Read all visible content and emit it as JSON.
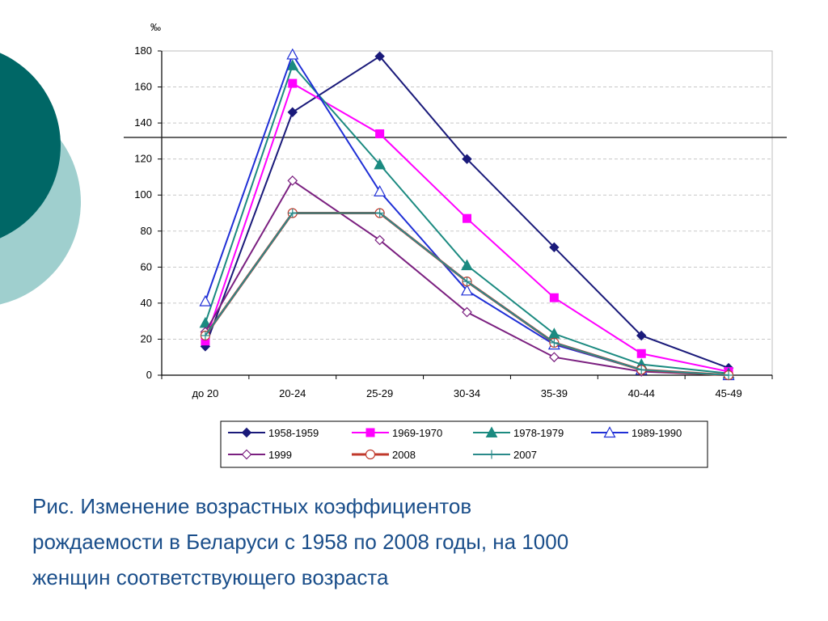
{
  "colors": {
    "deco_dark": "#006766",
    "deco_light": "#9fcfce",
    "caption": "#1a4e8a",
    "grid": "#c8c8c8"
  },
  "chart_data": {
    "type": "line",
    "title": "",
    "xlabel": "",
    "ylabel": "",
    "unit": "‰",
    "categories": [
      "до 20",
      "20-24",
      "25-29",
      "30-34",
      "35-39",
      "40-44",
      "45-49"
    ],
    "ylim": [
      0,
      180
    ],
    "yticks": [
      0,
      20,
      40,
      60,
      80,
      100,
      120,
      140,
      160,
      180
    ],
    "grid": true,
    "reference_line": 132,
    "legend_position": "bottom",
    "series": [
      {
        "name": "1958-1959",
        "color": "#1a1a7a",
        "marker": "diamond-filled",
        "values": [
          16,
          146,
          177,
          120,
          71,
          22,
          4
        ]
      },
      {
        "name": "1969-1970",
        "color": "#ff00ff",
        "marker": "square-filled",
        "values": [
          19,
          162,
          134,
          87,
          43,
          12,
          2
        ]
      },
      {
        "name": "1978-1979",
        "color": "#1b8a80",
        "marker": "triangle-filled",
        "values": [
          29,
          172,
          117,
          61,
          23,
          6,
          1
        ]
      },
      {
        "name": "1989-1990",
        "color": "#1f2fd6",
        "marker": "triangle-open",
        "values": [
          41,
          178,
          102,
          47,
          17,
          3,
          0
        ]
      },
      {
        "name": "1999",
        "color": "#7b2080",
        "marker": "diamond-open",
        "values": [
          24,
          108,
          75,
          35,
          10,
          2,
          0
        ]
      },
      {
        "name": "2008",
        "color": "#c0392b",
        "marker": "circle-open",
        "values": [
          22,
          90,
          90,
          52,
          18,
          3,
          0
        ]
      },
      {
        "name": "2007",
        "color": "#2a8a8a",
        "marker": "plus",
        "values": [
          22,
          90,
          90,
          52,
          18,
          3,
          0
        ]
      }
    ]
  },
  "caption": {
    "line1": "Рис. Изменение возрастных коэффициентов",
    "line2": "рождаемости в Беларуси с 1958 по 2008 годы, на 1000",
    "line3": "женщин соответствующего возраста"
  }
}
